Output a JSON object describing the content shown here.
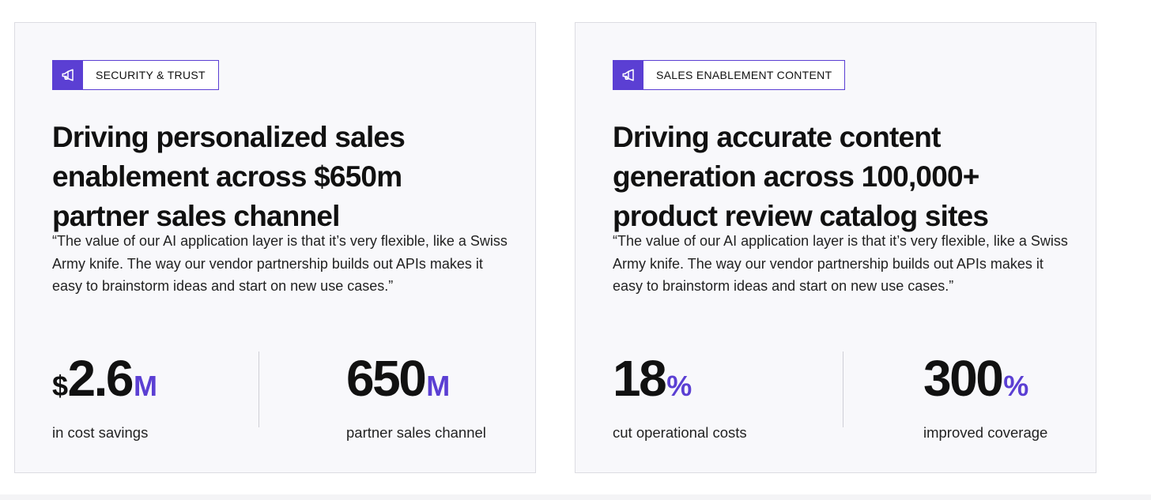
{
  "cards": [
    {
      "tag": "SECURITY & TRUST",
      "headline": "Driving personalized sales enablement across $650m partner sales channel",
      "quote": "“The value of our AI application layer is that it’s very flexible, like a Swiss Army knife. The way our vendor partnership builds out APIs makes it easy to brainstorm ideas and start on new use cases.”",
      "stats": [
        {
          "prefix": "$",
          "number": "2.6",
          "suffix": "M",
          "label": "in cost savings"
        },
        {
          "prefix": "",
          "number": "650",
          "suffix": "M",
          "label": "partner sales channel"
        }
      ]
    },
    {
      "tag": "SALES ENABLEMENT CONTENT",
      "headline": "Driving accurate content generation across 100,000+ product review catalog sites",
      "quote": "“The value of our AI application layer is that it’s very flexible, like a Swiss Army knife. The way our vendor partnership builds out APIs makes it easy to brainstorm ideas and start on new use cases.”",
      "stats": [
        {
          "prefix": "",
          "number": "18",
          "suffix": "%",
          "label": "cut operational costs"
        },
        {
          "prefix": "",
          "number": "300",
          "suffix": "%",
          "label": "improved coverage"
        }
      ]
    }
  ],
  "icons": {
    "tag_icon": "megaphone-icon"
  },
  "colors": {
    "accent": "#5b3fd3",
    "card_bg": "#f8f8fb",
    "card_border": "#dcdce2"
  }
}
